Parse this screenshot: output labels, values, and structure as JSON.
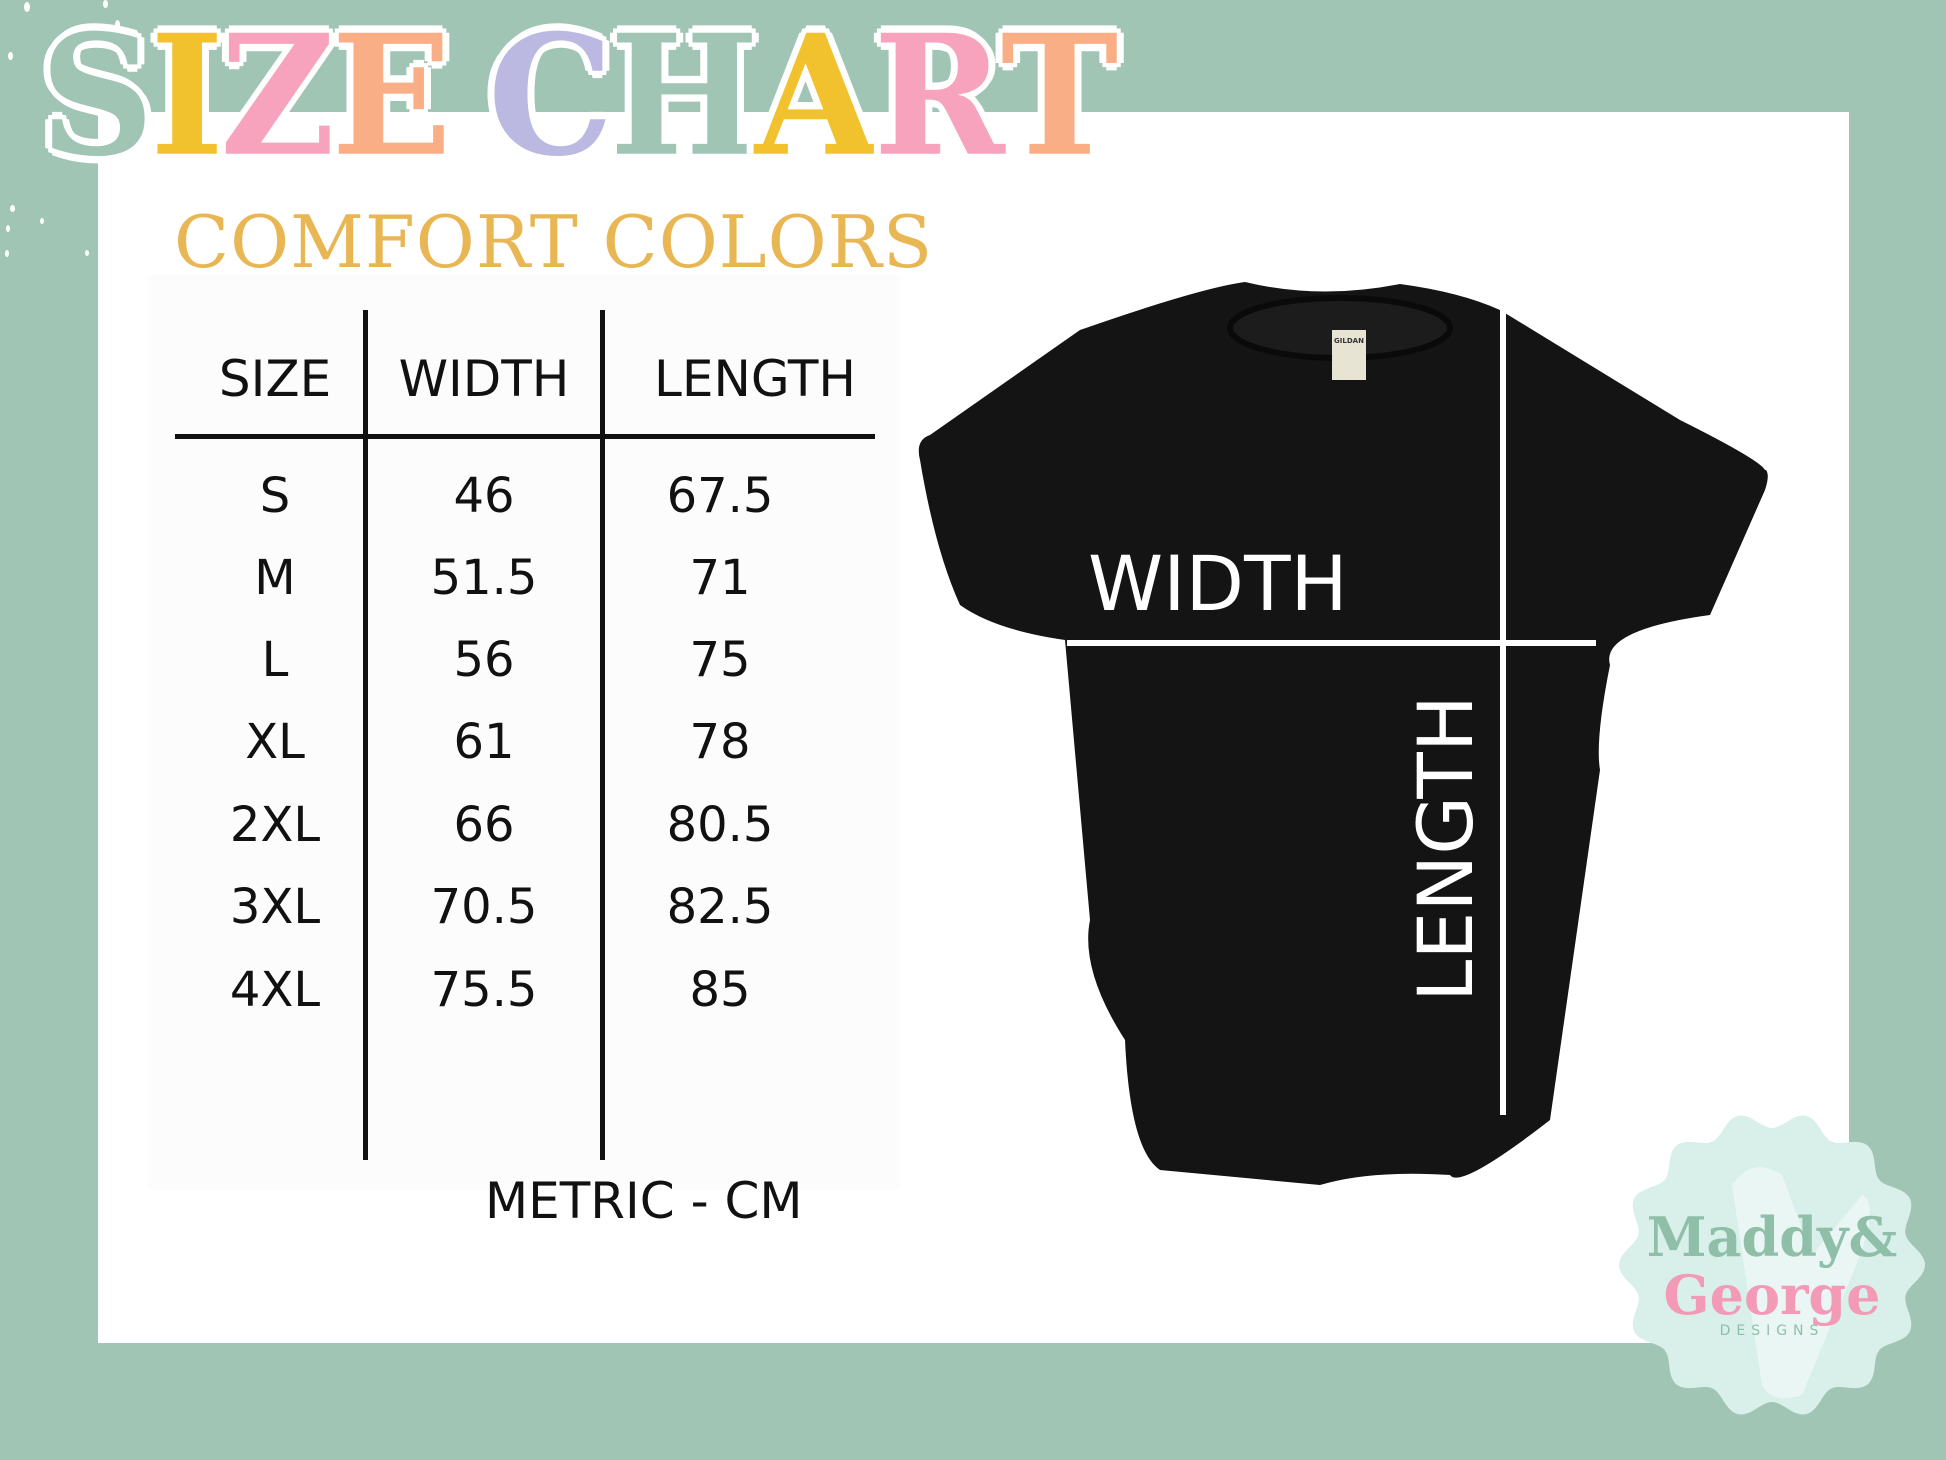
{
  "title": {
    "letters": [
      "S",
      "I",
      "Z",
      "E",
      " ",
      "C",
      "H",
      "A",
      "R",
      "T"
    ],
    "colors": [
      "#a0c5b5",
      "#f2c12e",
      "#f7a3bd",
      "#f9ae85",
      "",
      "#bbb8e2",
      "#a0c5b5",
      "#f2c12e",
      "#f7a3bd",
      "#f9ae85"
    ]
  },
  "subtitle": "COMFORT COLORS",
  "table": {
    "headers": [
      "SIZE",
      "WIDTH",
      "LENGTH"
    ],
    "rows": [
      [
        "S",
        "46",
        "67.5"
      ],
      [
        "M",
        "51.5",
        "71"
      ],
      [
        "L",
        "56",
        "75"
      ],
      [
        "XL",
        "61",
        "78"
      ],
      [
        "2XL",
        "66",
        "80.5"
      ],
      [
        "3XL",
        "70.5",
        "82.5"
      ],
      [
        "4XL",
        "75.5",
        "85"
      ]
    ],
    "unit_note": "METRIC - CM"
  },
  "diagram": {
    "width_label": "WIDTH",
    "length_label": "LENGTH",
    "tag_text": "GILDAN"
  },
  "logo": {
    "line1": "Maddy&",
    "line2": "George",
    "line3": "DESIGNS"
  },
  "colors": {
    "background": "#a0c5b5",
    "panel": "#ffffff",
    "accent": "#e9b654",
    "shirt": "#141414"
  }
}
